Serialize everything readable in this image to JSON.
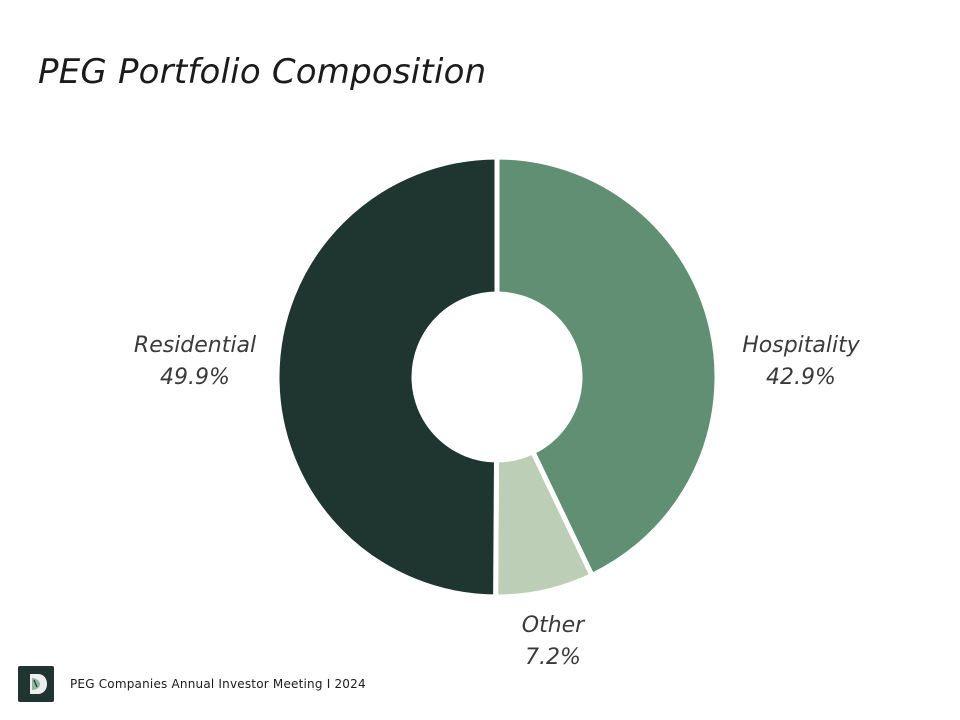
{
  "slide": {
    "title": "PEG Portfolio Composition"
  },
  "chart_data": {
    "type": "pie",
    "title": "PEG Portfolio Composition",
    "donut": true,
    "slices": [
      {
        "label": "Hospitality",
        "value": 42.9,
        "value_label": "42.9%",
        "color": "#618f73"
      },
      {
        "label": "Other",
        "value": 7.2,
        "value_label": "7.2%",
        "color": "#bccfb6"
      },
      {
        "label": "Residential",
        "value": 49.9,
        "value_label": "49.9%",
        "color": "#1f352f"
      }
    ],
    "start_angle": "12 o'clock",
    "direction": "clockwise",
    "legend": "none"
  },
  "footer": {
    "text": "PEG Companies Annual Investor Meeting I 2024",
    "logo_icon": "peg-logo-icon"
  }
}
